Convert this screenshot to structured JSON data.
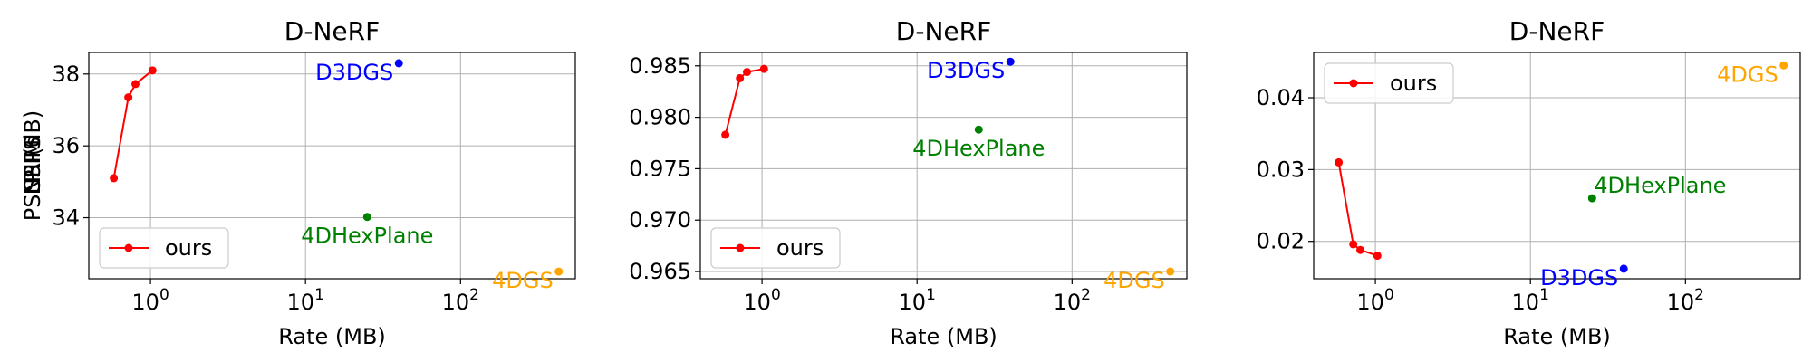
{
  "chart_data": [
    {
      "type": "scatter",
      "title": "D-NeRF",
      "xlabel": "Rate (MB)",
      "ylabel": "PSNR (dB)",
      "xscale": "log",
      "xlim": [
        0.4,
        550
      ],
      "ylim": [
        32.3,
        38.6
      ],
      "xticks": [
        1,
        10,
        100
      ],
      "xtick_labels": [
        "10",
        "10",
        "10"
      ],
      "xtick_exponents": [
        "0",
        "1",
        "2"
      ],
      "yticks": [
        34,
        36,
        38
      ],
      "ytick_labels": [
        "34",
        "36",
        "38"
      ],
      "grid": true,
      "legend_position": "lower-left",
      "series": [
        {
          "name": "ours",
          "color": "#ff0000",
          "line": true,
          "show_in_legend": true,
          "points": [
            [
              0.58,
              35.1
            ],
            [
              0.72,
              37.35
            ],
            [
              0.8,
              37.72
            ],
            [
              1.03,
              38.1
            ]
          ]
        },
        {
          "label": "D3DGS",
          "color": "#0000ff",
          "line": false,
          "label_anchor": "end",
          "points": [
            [
              40,
              38.3
            ]
          ]
        },
        {
          "label": "4DHexPlane",
          "color": "#008000",
          "line": false,
          "label_anchor": "middle",
          "points": [
            [
              25,
              34.02
            ]
          ]
        },
        {
          "label": "4DGS",
          "color": "#ffa500",
          "line": false,
          "label_anchor": "end",
          "points": [
            [
              430,
              32.5
            ]
          ]
        }
      ]
    },
    {
      "type": "scatter",
      "title": "D-NeRF",
      "xlabel": "Rate (MB)",
      "ylabel": "SSIM",
      "xscale": "log",
      "xlim": [
        0.4,
        550
      ],
      "ylim": [
        0.9643,
        0.9863
      ],
      "xticks": [
        1,
        10,
        100
      ],
      "xtick_labels": [
        "10",
        "10",
        "10"
      ],
      "xtick_exponents": [
        "0",
        "1",
        "2"
      ],
      "yticks": [
        0.965,
        0.97,
        0.975,
        0.98,
        0.985
      ],
      "ytick_labels": [
        "0.965",
        "0.970",
        "0.975",
        "0.980",
        "0.985"
      ],
      "grid": true,
      "legend_position": "lower-left",
      "series": [
        {
          "name": "ours",
          "color": "#ff0000",
          "line": true,
          "show_in_legend": true,
          "points": [
            [
              0.58,
              0.9783
            ],
            [
              0.72,
              0.9838
            ],
            [
              0.8,
              0.9844
            ],
            [
              1.03,
              0.9847
            ]
          ]
        },
        {
          "label": "D3DGS",
          "color": "#0000ff",
          "line": false,
          "label_anchor": "end",
          "points": [
            [
              40,
              0.9854
            ]
          ]
        },
        {
          "label": "4DHexPlane",
          "color": "#008000",
          "line": false,
          "label_anchor": "middle",
          "points": [
            [
              25,
              0.9788
            ]
          ]
        },
        {
          "label": "4DGS",
          "color": "#ffa500",
          "line": false,
          "label_anchor": "end",
          "points": [
            [
              430,
              0.965
            ]
          ]
        }
      ]
    },
    {
      "type": "scatter",
      "title": "D-NeRF",
      "xlabel": "Rate (MB)",
      "ylabel": "LPIPS",
      "xscale": "log",
      "xlim": [
        0.4,
        550
      ],
      "ylim": [
        0.0148,
        0.0463
      ],
      "xticks": [
        1,
        10,
        100
      ],
      "xtick_labels": [
        "10",
        "10",
        "10"
      ],
      "xtick_exponents": [
        "0",
        "1",
        "2"
      ],
      "yticks": [
        0.02,
        0.03,
        0.04
      ],
      "ytick_labels": [
        "0.02",
        "0.03",
        "0.04"
      ],
      "grid": true,
      "legend_position": "upper-left",
      "series": [
        {
          "name": "ours",
          "color": "#ff0000",
          "line": true,
          "show_in_legend": true,
          "points": [
            [
              0.58,
              0.031
            ],
            [
              0.72,
              0.0196
            ],
            [
              0.8,
              0.0188
            ],
            [
              1.03,
              0.018
            ]
          ]
        },
        {
          "label": "D3DGS",
          "color": "#0000ff",
          "line": false,
          "label_anchor": "end",
          "points": [
            [
              40,
              0.0162
            ]
          ]
        },
        {
          "label": "4DHexPlane",
          "color": "#008000",
          "line": false,
          "label_anchor": "start",
          "points": [
            [
              25,
              0.026
            ]
          ]
        },
        {
          "label": "4DGS",
          "color": "#ffa500",
          "line": false,
          "label_anchor": "end",
          "points": [
            [
              430,
              0.0445
            ]
          ]
        }
      ]
    }
  ]
}
